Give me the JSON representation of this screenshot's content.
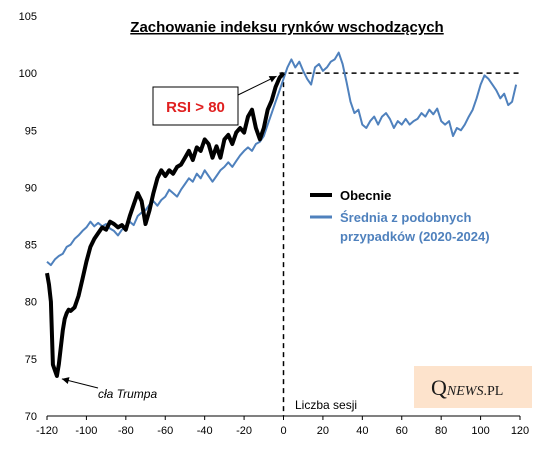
{
  "chart_data": {
    "type": "line",
    "title": "Zachowanie indeksu rynków wschodzących",
    "xlabel": "Liczba sesji",
    "ylabel": "",
    "xlim": [
      -120,
      120
    ],
    "ylim": [
      70,
      105
    ],
    "x_ticks": [
      -120,
      -100,
      -80,
      -60,
      -40,
      -20,
      0,
      20,
      40,
      60,
      80,
      100,
      120
    ],
    "y_ticks": [
      70,
      75,
      80,
      85,
      90,
      95,
      100,
      105
    ],
    "reference_lines": {
      "y": 100,
      "x": 0,
      "style": "dashed"
    },
    "series": [
      {
        "name": "Obecnie",
        "color": "#000000",
        "x": [
          -120,
          -119,
          -118,
          -117,
          -116,
          -115,
          -114,
          -113,
          -112,
          -111,
          -110,
          -109,
          -108,
          -106,
          -104,
          -102,
          -100,
          -98,
          -96,
          -94,
          -92,
          -90,
          -88,
          -86,
          -84,
          -82,
          -80,
          -78,
          -76,
          -74,
          -72,
          -70,
          -68,
          -66,
          -64,
          -62,
          -60,
          -58,
          -56,
          -54,
          -52,
          -50,
          -48,
          -46,
          -44,
          -42,
          -40,
          -38,
          -36,
          -34,
          -32,
          -30,
          -28,
          -26,
          -24,
          -22,
          -20,
          -18,
          -16,
          -14,
          -12,
          -10,
          -8,
          -6,
          -4,
          -2,
          0
        ],
        "values": [
          82.5,
          81.5,
          80,
          74.5,
          74,
          73.5,
          74.5,
          76,
          77.5,
          78.5,
          79,
          79.3,
          79.2,
          79.5,
          80.5,
          82,
          83.5,
          84.8,
          85.5,
          86,
          86.5,
          86.3,
          87,
          86.8,
          86.5,
          86.7,
          86.3,
          87.5,
          88.5,
          89.5,
          88.8,
          86.8,
          88,
          89.5,
          90.8,
          91.5,
          91,
          91.5,
          91.2,
          91.8,
          92,
          92.6,
          93.2,
          92.4,
          93.5,
          93.2,
          94.2,
          93.8,
          92.6,
          93.6,
          92.6,
          94.2,
          94.6,
          93.8,
          94.8,
          95.2,
          94.8,
          96.2,
          96.8,
          95.2,
          94.2,
          95.2,
          96.8,
          97.6,
          98.8,
          99.6,
          100
        ]
      },
      {
        "name": "Średnia z podobnych przypadków (2020-2024)",
        "color": "#4f81bd",
        "x": [
          -120,
          -118,
          -116,
          -114,
          -112,
          -110,
          -108,
          -106,
          -104,
          -102,
          -100,
          -98,
          -96,
          -94,
          -92,
          -90,
          -88,
          -86,
          -84,
          -82,
          -80,
          -78,
          -76,
          -74,
          -72,
          -70,
          -68,
          -66,
          -64,
          -62,
          -60,
          -58,
          -56,
          -54,
          -52,
          -50,
          -48,
          -46,
          -44,
          -42,
          -40,
          -38,
          -36,
          -34,
          -32,
          -30,
          -28,
          -26,
          -24,
          -22,
          -20,
          -18,
          -16,
          -14,
          -12,
          -10,
          -8,
          -6,
          -4,
          -2,
          0,
          2,
          4,
          6,
          8,
          10,
          12,
          14,
          16,
          18,
          20,
          22,
          24,
          26,
          28,
          30,
          32,
          34,
          36,
          38,
          40,
          42,
          44,
          46,
          48,
          50,
          52,
          54,
          56,
          58,
          60,
          62,
          64,
          66,
          68,
          70,
          72,
          74,
          76,
          78,
          80,
          82,
          84,
          86,
          88,
          90,
          92,
          94,
          96,
          98,
          100,
          102,
          104,
          106,
          108,
          110,
          112,
          114,
          116,
          118
        ],
        "values": [
          83.5,
          83.2,
          83.7,
          84,
          84.2,
          84.8,
          85,
          85.5,
          85.8,
          86.2,
          86.5,
          87,
          86.6,
          86.9,
          86.6,
          86.8,
          86.4,
          86.2,
          85.8,
          86.3,
          86.5,
          87,
          86.7,
          87.5,
          87.8,
          88,
          88.5,
          88.8,
          88.4,
          88.9,
          89.2,
          89.8,
          89.5,
          89.2,
          89.8,
          90.3,
          90.8,
          90.5,
          91.2,
          90.8,
          91.5,
          91,
          90.5,
          91,
          91.5,
          91.8,
          92.2,
          91.8,
          92.3,
          92.8,
          93.2,
          93.5,
          93.2,
          93.8,
          94,
          94.5,
          95.5,
          96.5,
          97.5,
          98.5,
          99.5,
          100.5,
          101.2,
          100.5,
          101,
          100.2,
          99.5,
          99,
          100.5,
          100.8,
          100.2,
          100.5,
          101,
          101.2,
          101.8,
          100.8,
          99.2,
          97.5,
          96.5,
          96.8,
          95.5,
          95.2,
          95.8,
          96.2,
          95.5,
          96.2,
          96.5,
          96,
          95.2,
          95.8,
          95.5,
          96,
          95.5,
          95.8,
          96,
          96.5,
          96.2,
          96.8,
          96.4,
          96.9,
          95.8,
          95.5,
          95.8,
          94.5,
          95.2,
          95,
          95.5,
          96.2,
          96.8,
          97.8,
          99,
          99.8,
          99.5,
          99,
          98.5,
          97.8,
          98.2,
          97.2,
          97.5,
          99
        ]
      }
    ],
    "legend": {
      "position": "right-middle",
      "entries": [
        "Obecnie",
        "Średnia z podobnych",
        "przypadków (2020-2024)"
      ]
    },
    "annotations": {
      "rsi_label": "RSI > 80",
      "rsi_target": {
        "x": -2,
        "y": 100
      },
      "trump_label": "cła Trumpa",
      "trump_target": {
        "x": -115,
        "y": 73.6
      }
    },
    "logo": {
      "q": "Q",
      "news": "NEWS",
      "pl": ".PL"
    }
  }
}
